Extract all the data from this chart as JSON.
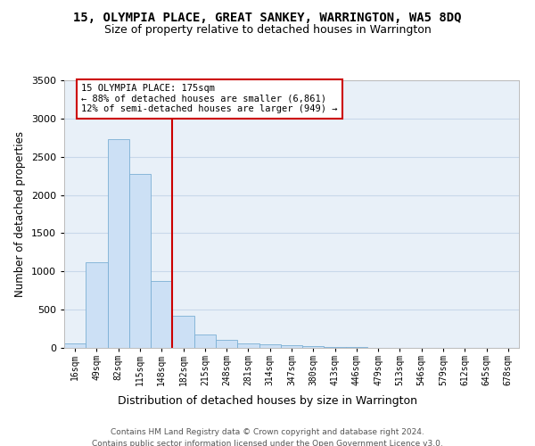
{
  "title": "15, OLYMPIA PLACE, GREAT SANKEY, WARRINGTON, WA5 8DQ",
  "subtitle": "Size of property relative to detached houses in Warrington",
  "xlabel": "Distribution of detached houses by size in Warrington",
  "ylabel": "Number of detached properties",
  "bar_color": "#cce0f5",
  "bar_edge_color": "#7bafd4",
  "categories": [
    "16sqm",
    "49sqm",
    "82sqm",
    "115sqm",
    "148sqm",
    "182sqm",
    "215sqm",
    "248sqm",
    "281sqm",
    "314sqm",
    "347sqm",
    "380sqm",
    "413sqm",
    "446sqm",
    "479sqm",
    "513sqm",
    "546sqm",
    "579sqm",
    "612sqm",
    "645sqm",
    "678sqm"
  ],
  "values": [
    55,
    1120,
    2730,
    2280,
    880,
    420,
    175,
    100,
    60,
    45,
    30,
    20,
    15,
    10,
    5,
    3,
    2,
    1,
    1,
    0,
    0
  ],
  "ylim": [
    0,
    3500
  ],
  "yticks": [
    0,
    500,
    1000,
    1500,
    2000,
    2500,
    3000,
    3500
  ],
  "vline_color": "#cc0000",
  "annotation_title": "15 OLYMPIA PLACE: 175sqm",
  "annotation_line1": "← 88% of detached houses are smaller (6,861)",
  "annotation_line2": "12% of semi-detached houses are larger (949) →",
  "annotation_box_color": "#cc0000",
  "grid_color": "#c8d8ea",
  "bg_color": "#e8f0f8",
  "footer1": "Contains HM Land Registry data © Crown copyright and database right 2024.",
  "footer2": "Contains public sector information licensed under the Open Government Licence v3.0."
}
